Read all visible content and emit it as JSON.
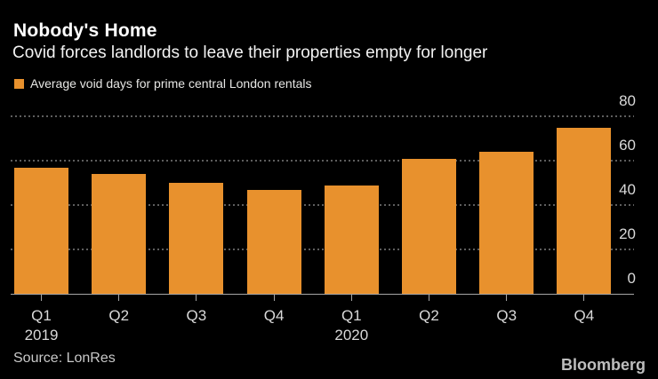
{
  "header": {
    "title": "Nobody's Home",
    "subtitle": "Covid forces landlords to leave their properties empty for longer"
  },
  "legend": {
    "label": "Average void days for prime central London rentals"
  },
  "chart_data": {
    "type": "bar",
    "title": "Nobody's Home",
    "subtitle": "Covid forces landlords to leave their properties empty for longer",
    "series_name": "Average void days for prime central London rentals",
    "categories": [
      "Q1 2019",
      "Q2 2019",
      "Q3 2019",
      "Q4 2019",
      "Q1 2020",
      "Q2 2020",
      "Q3 2020",
      "Q4 2020"
    ],
    "x_tick_labels": [
      "Q1",
      "Q2",
      "Q3",
      "Q4",
      "Q1",
      "Q2",
      "Q3",
      "Q4"
    ],
    "year_markers": [
      {
        "index": 0,
        "label": "2019"
      },
      {
        "index": 4,
        "label": "2020"
      }
    ],
    "values": [
      57,
      54,
      50,
      47,
      49,
      61,
      64,
      75
    ],
    "ylim": [
      0,
      80
    ],
    "y_ticks": [
      0,
      20,
      40,
      60,
      80
    ],
    "grid": "horizontal-dotted",
    "legend_position": "top-left",
    "bar_color": "#E8912D"
  },
  "footer": {
    "source": "Source: LonRes",
    "brand": "Bloomberg"
  },
  "colors": {
    "background": "#000000",
    "title_text": "#FFFFFF",
    "subtitle_text": "#F2F2F2",
    "bar": "#E8912D",
    "axis_label": "#D9D9D9",
    "gridline": "#5E5E5E",
    "axis_line": "#A6A6A6",
    "source_text": "#C9C9C9",
    "brand_text": "#BEBEBE"
  }
}
